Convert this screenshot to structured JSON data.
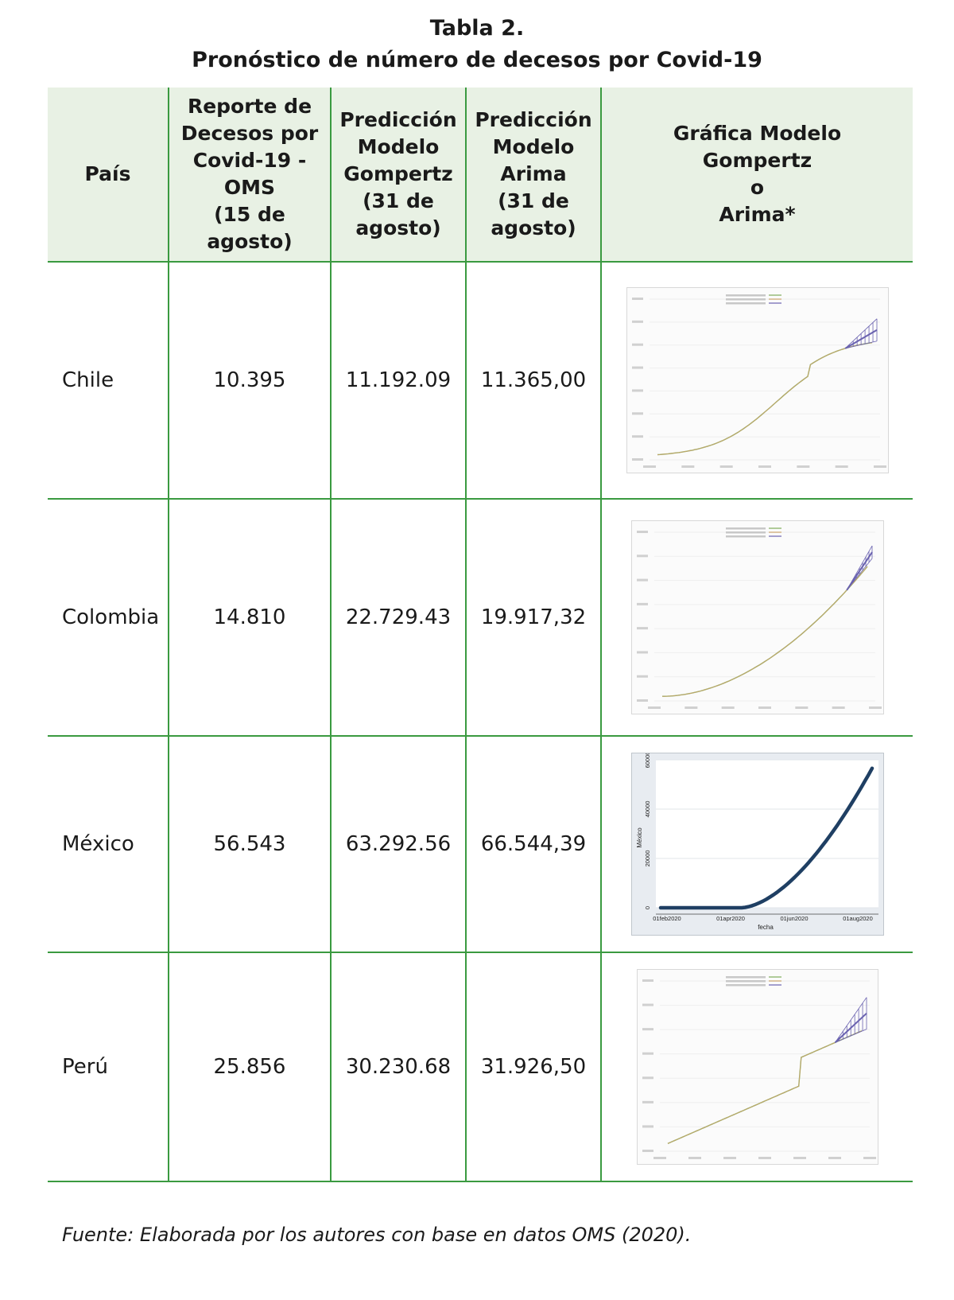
{
  "title_line1": "Tabla 2.",
  "title_line2": "Pronóstico de número de decesos por Covid-19",
  "headers": {
    "pais": "País",
    "reporte": "Reporte de\nDecesos por\nCovid-19 -\nOMS\n(15 de agosto)",
    "gompertz": "Predicción\nModelo\nGompertz\n(31 de\nagosto)",
    "arima": "Predicción\nModelo\nArima\n(31 de\nagosto)",
    "grafica": "Gráfica Modelo\nGompertz\no\nArima*"
  },
  "rows": [
    {
      "pais": "Chile",
      "reporte": "10.395",
      "gompertz": "11.192.09",
      "arima": "11.365,00"
    },
    {
      "pais": "Colombia",
      "reporte": "14.810",
      "gompertz": "22.729.43",
      "arima": "19.917,32"
    },
    {
      "pais": "México",
      "reporte": "56.543",
      "gompertz": "63.292.56",
      "arima": "66.544,39"
    },
    {
      "pais": "Perú",
      "reporte": "25.856",
      "gompertz": "30.230.68",
      "arima": "31.926,50"
    }
  ],
  "mexico_chart": {
    "ylabel": "México",
    "xlabel": "fecha",
    "yticks": [
      "0",
      "20000",
      "40000",
      "60000"
    ],
    "xticks": [
      "01feb2020",
      "01apr2020",
      "01jun2020",
      "01aug2020"
    ],
    "ylim": [
      0,
      60000
    ],
    "line_color": "#1f3f63"
  },
  "chart_colors": {
    "observed": "#7fae5a",
    "predicted": "#c9a36b",
    "interval": "#6a62b0"
  },
  "footer": "Fuente: Elaborada por los autores con base en datos OMS (2020)."
}
